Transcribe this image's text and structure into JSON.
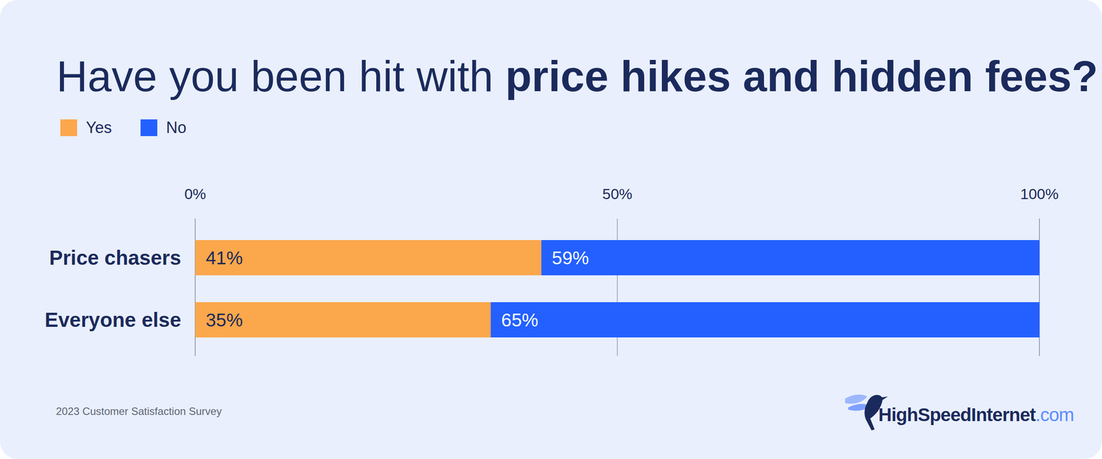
{
  "chart_data": {
    "type": "bar",
    "orientation": "horizontal",
    "stacked": true,
    "title": "Have you been hit with price hikes and hidden fees?",
    "categories": [
      "Price chasers",
      "Everyone else"
    ],
    "series": [
      {
        "name": "Yes",
        "color": "#fba74b",
        "values": [
          41,
          35
        ],
        "value_labels": [
          "41%",
          "35%"
        ]
      },
      {
        "name": "No",
        "color": "#2360ff",
        "values": [
          59,
          65
        ],
        "value_labels": [
          "59%",
          "65%"
        ]
      }
    ],
    "xlim": [
      0,
      100
    ],
    "xticks": [
      {
        "value": 0,
        "label": "0%"
      },
      {
        "value": 50,
        "label": "50%"
      },
      {
        "value": 100,
        "label": "100%"
      }
    ],
    "grid": true,
    "legend": "top-left",
    "data_labels": true,
    "annotations": [
      "2023 Customer Satisfaction Survey",
      "HighSpeedInternet.com"
    ]
  }
}
